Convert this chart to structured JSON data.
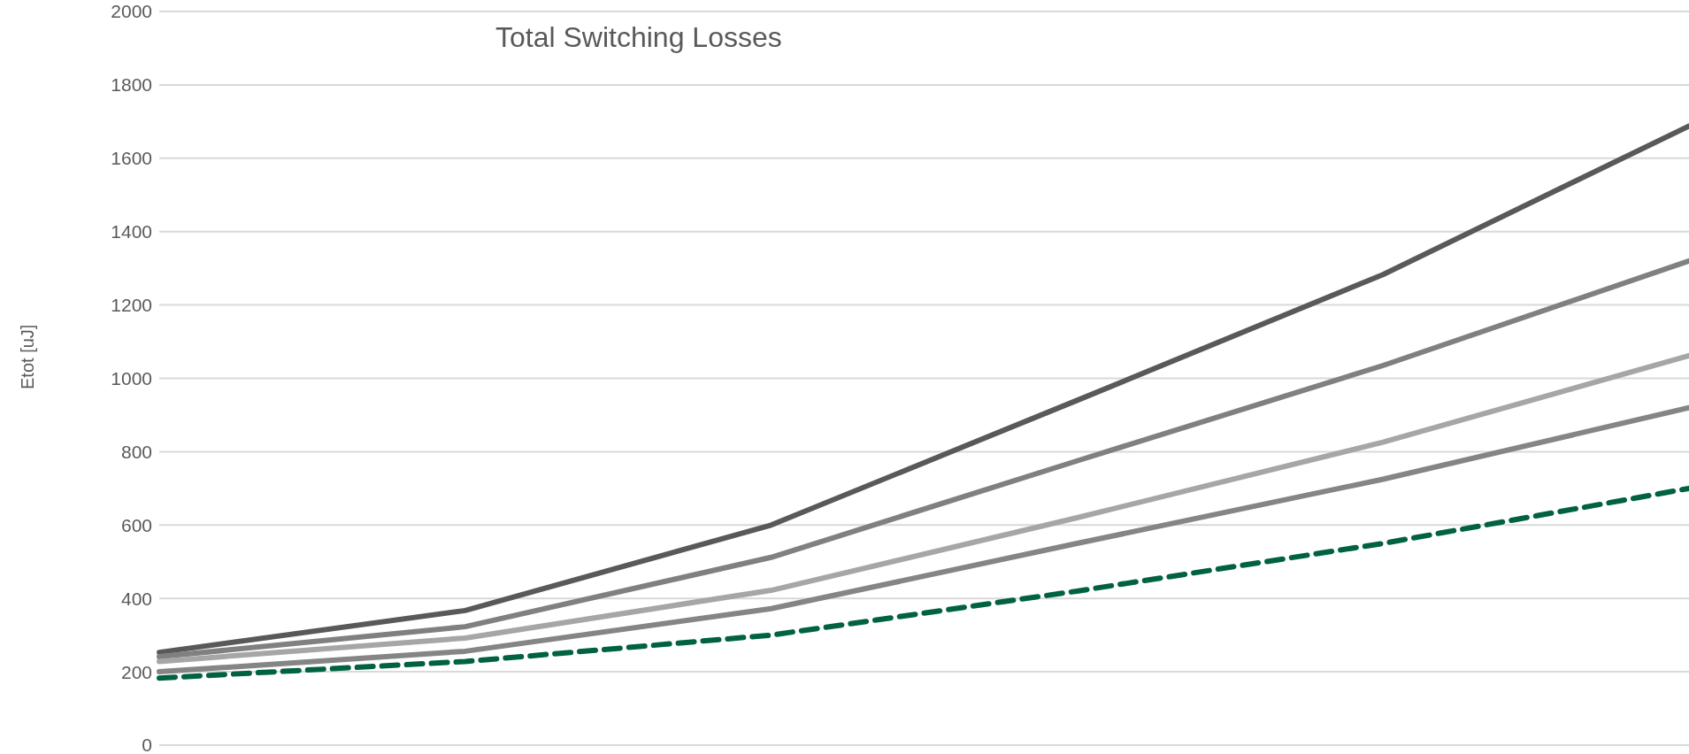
{
  "chart_data": {
    "type": "line",
    "title": "Total Switching Losses",
    "ylabel": "Etot [uJ]",
    "categories": [
      null,
      null,
      null,
      null,
      null,
      null
    ],
    "series": [
      {
        "color": "#595959",
        "values": [
          253,
          367,
          600,
          940,
          1283,
          1688
        ]
      },
      {
        "color": "#808080",
        "values": [
          241,
          323,
          512,
          775,
          1035,
          1320
        ]
      },
      {
        "color": "#a6a6a6",
        "values": [
          228,
          292,
          422,
          620,
          826,
          1062
        ]
      },
      {
        "color": "#858585",
        "values": [
          200,
          256,
          372,
          550,
          725,
          920
        ]
      },
      {
        "color": "#00623f",
        "values": [
          183,
          228,
          300,
          420,
          550,
          700
        ],
        "line_style": "dashed"
      }
    ],
    "ylim": [
      0,
      2000
    ],
    "yticks": [
      0,
      200,
      400,
      600,
      800,
      1000,
      1200,
      1400,
      1600,
      1800,
      2000
    ],
    "grid": "y",
    "legend": false,
    "marker": "none"
  }
}
